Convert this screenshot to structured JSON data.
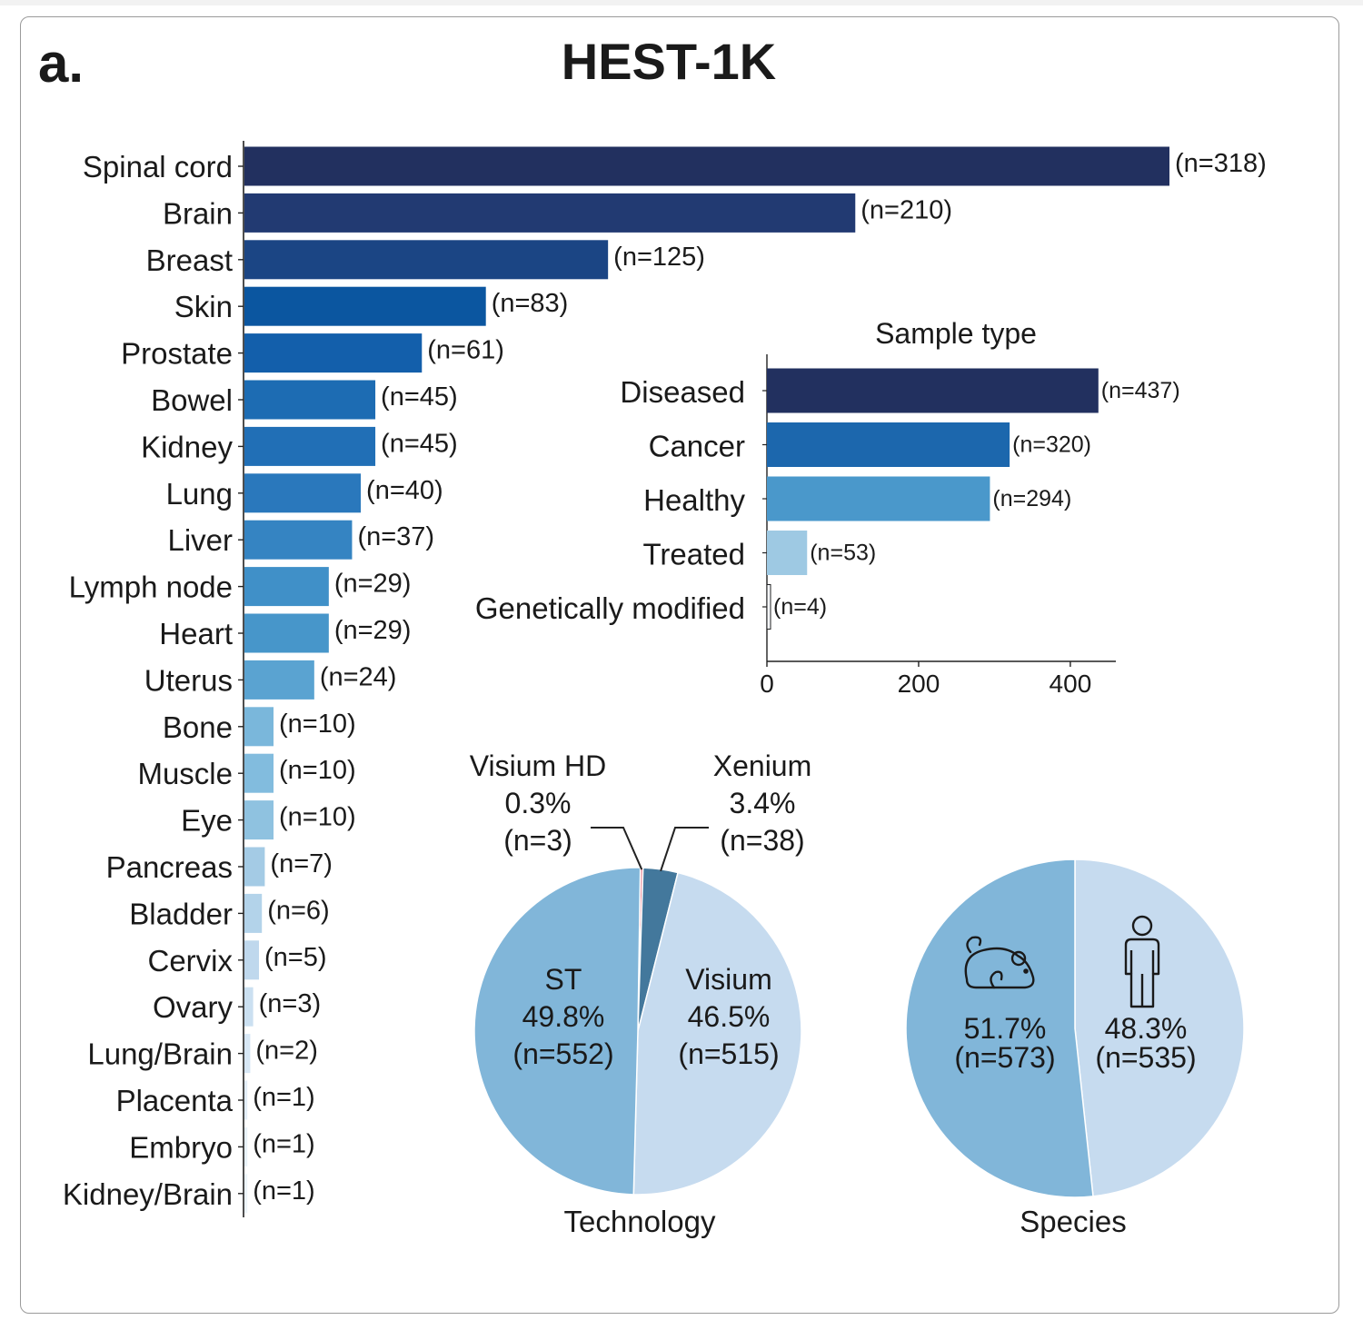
{
  "figure": {
    "panel_letter": "a.",
    "title": "HEST-1K"
  },
  "chart_data": [
    {
      "type": "bar",
      "orientation": "horizontal",
      "categories": [
        "Spinal cord",
        "Brain",
        "Breast",
        "Skin",
        "Prostate",
        "Bowel",
        "Kidney",
        "Lung",
        "Liver",
        "Lymph node",
        "Heart",
        "Uterus",
        "Bone",
        "Muscle",
        "Eye",
        "Pancreas",
        "Bladder",
        "Cervix",
        "Ovary",
        "Lung/Brain",
        "Placenta",
        "Embryo",
        "Kidney/Brain"
      ],
      "values": [
        318,
        210,
        125,
        83,
        61,
        45,
        45,
        40,
        37,
        29,
        29,
        24,
        10,
        10,
        10,
        7,
        6,
        5,
        3,
        2,
        1,
        1,
        1
      ],
      "data_labels": [
        "(n=318)",
        "(n=210)",
        "(n=125)",
        "(n=83)",
        "(n=61)",
        "(n=45)",
        "(n=45)",
        "(n=40)",
        "(n=37)",
        "(n=29)",
        "(n=29)",
        "(n=24)",
        "(n=10)",
        "(n=10)",
        "(n=10)",
        "(n=7)",
        "(n=6)",
        "(n=5)",
        "(n=3)",
        "(n=2)",
        "(n=1)",
        "(n=1)",
        "(n=1)"
      ],
      "colors": [
        "#22305f",
        "#223a72",
        "#1b4584",
        "#0b56a0",
        "#135fab",
        "#1d6cb3",
        "#216fb6",
        "#2a78bc",
        "#3584c2",
        "#4090c8",
        "#4796ca",
        "#5aa3d1",
        "#7ab7db",
        "#82bcde",
        "#8fc2e0",
        "#a4cbe5",
        "#b3d3ea",
        "#bfd8ed",
        "#cbe0f1",
        "#d7e7f5",
        "#e3eef8",
        "#e9f2f9",
        "#edf4fa"
      ],
      "xlim": [
        0,
        318
      ]
    },
    {
      "type": "bar",
      "orientation": "horizontal",
      "title": "Sample type",
      "categories": [
        "Diseased",
        "Cancer",
        "Healthy",
        "Treated",
        "Genetically modified"
      ],
      "values": [
        437,
        320,
        294,
        53,
        4
      ],
      "data_labels": [
        "(n=437)",
        "(n=320)",
        "(n=294)",
        "(n=53)",
        "(n=4)"
      ],
      "colors": [
        "#22305f",
        "#1c67ad",
        "#4a98cb",
        "#9ec9e3",
        "#f7fbff"
      ],
      "xlim": [
        0,
        460
      ],
      "xticks": [
        0,
        200,
        400
      ],
      "xtick_labels": [
        "0",
        "200",
        "400"
      ]
    },
    {
      "type": "pie",
      "title": "Technology",
      "slices": [
        {
          "name": "Visium HD",
          "pct_label": "0.3%",
          "n_label": "(n=3)",
          "value": 3,
          "color": "#e88a98"
        },
        {
          "name": "Xenium",
          "pct_label": "3.4%",
          "n_label": "(n=38)",
          "value": 38,
          "color": "#43789c"
        },
        {
          "name": "Visium",
          "pct_label": "46.5%",
          "n_label": "(n=515)",
          "value": 515,
          "color": "#c6dbef"
        },
        {
          "name": "ST",
          "pct_label": "49.8%",
          "n_label": "(n=552)",
          "value": 552,
          "color": "#81b6d9"
        }
      ]
    },
    {
      "type": "pie",
      "title": "Species",
      "slices": [
        {
          "name": "human-icon",
          "pct_label": "48.3%",
          "n_label": "(n=535)",
          "value": 535,
          "color": "#c6dbef"
        },
        {
          "name": "mouse-icon",
          "pct_label": "51.7%",
          "n_label": "(n=573)",
          "value": 573,
          "color": "#81b6d9"
        }
      ]
    }
  ]
}
